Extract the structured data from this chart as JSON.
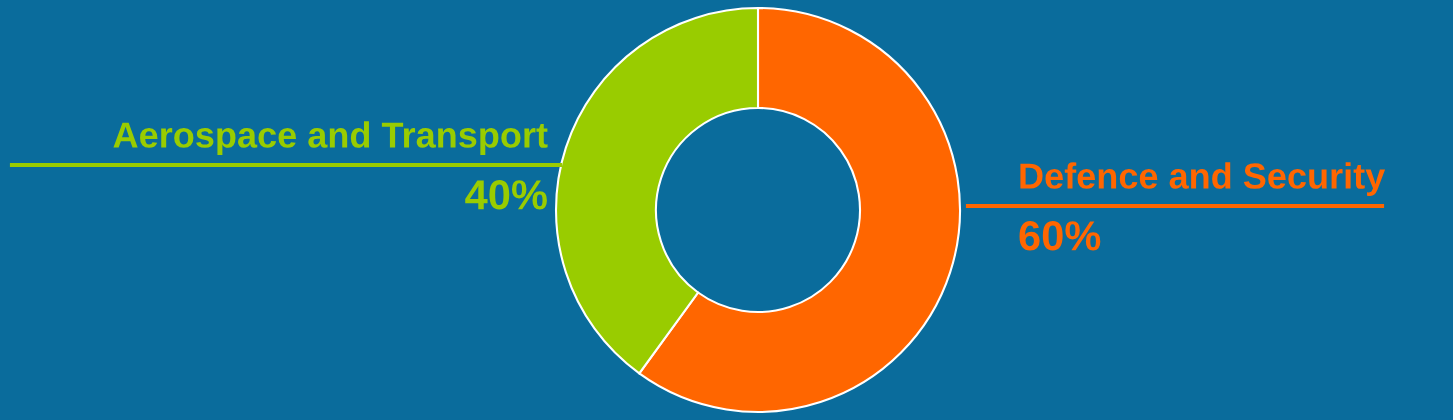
{
  "chart_data": {
    "type": "donut",
    "categories": [
      "Defence and Security",
      "Aerospace and Transport"
    ],
    "values": [
      60,
      40
    ],
    "value_labels": [
      "60%",
      "40%"
    ],
    "colors": [
      "#ff6600",
      "#99cc00"
    ],
    "legend": false
  }
}
